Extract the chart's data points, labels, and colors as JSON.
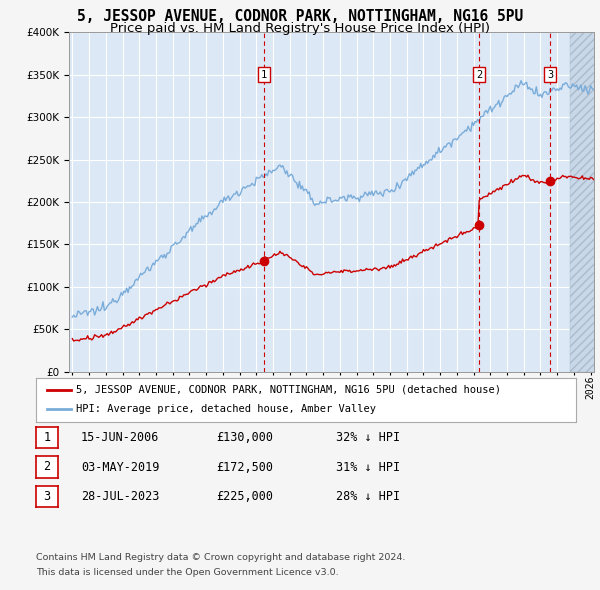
{
  "title": "5, JESSOP AVENUE, CODNOR PARK, NOTTINGHAM, NG16 5PU",
  "subtitle": "Price paid vs. HM Land Registry's House Price Index (HPI)",
  "title_fontsize": 10.5,
  "subtitle_fontsize": 9.5,
  "background_color": "#f5f5f5",
  "plot_bg_color": "#dce8f5",
  "legend_label_red": "5, JESSOP AVENUE, CODNOR PARK, NOTTINGHAM, NG16 5PU (detached house)",
  "legend_label_blue": "HPI: Average price, detached house, Amber Valley",
  "sale_info": [
    [
      "1",
      "15-JUN-2006",
      "£130,000",
      "32% ↓ HPI"
    ],
    [
      "2",
      "03-MAY-2019",
      "£172,500",
      "31% ↓ HPI"
    ],
    [
      "3",
      "28-JUL-2023",
      "£225,000",
      "28% ↓ HPI"
    ]
  ],
  "footer1": "Contains HM Land Registry data © Crown copyright and database right 2024.",
  "footer2": "This data is licensed under the Open Government Licence v3.0.",
  "red_color": "#cc0000",
  "blue_color": "#7aacda",
  "vline_color": "#cc0000",
  "grid_color": "#ffffff",
  "ylim": [
    0,
    400000
  ],
  "yticks": [
    0,
    50000,
    100000,
    150000,
    200000,
    250000,
    300000,
    350000,
    400000
  ],
  "xlim_start": 1994.8,
  "xlim_end": 2026.2,
  "sale_date_nums": [
    2006.458,
    2019.333,
    2023.569
  ],
  "sale_prices": [
    130000,
    172500,
    225000
  ],
  "sale_labels": [
    "1",
    "2",
    "3"
  ]
}
